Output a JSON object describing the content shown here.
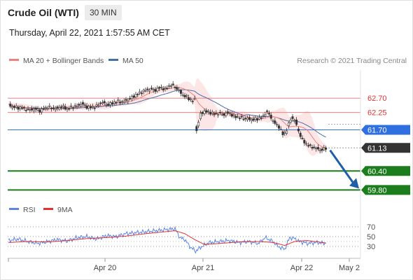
{
  "header": {
    "title": "Crude Oil (WTI)",
    "timeframe": "30 MIN",
    "datetime": "Thursday, April 22, 2021 1:57:55 AM CET"
  },
  "legend": {
    "ma20_label": "MA 20 + Bollinger Bands",
    "ma50_label": "MA 50",
    "copyright": "Research © 2021 Trading Central",
    "rsi_label": "RSI",
    "rsi_ma_label": "9MA"
  },
  "colors": {
    "ma20": "#f08080",
    "band_fill": "#fde0e0",
    "ma50": "#4a6ea8",
    "candle": "#333333",
    "resistance": "#f08080",
    "pivot": "#2f6fe0",
    "support": "#1b7d1b",
    "current": "#333333",
    "arrow": "#1f5fa8",
    "rsi": "#5b86e5",
    "rsi_ma": "#e53030"
  },
  "chart_data": [
    {
      "type": "candlestick",
      "title": "Crude Oil (WTI)",
      "x_ticks": [
        "Apr 20",
        "Apr 21",
        "Apr 22",
        "May 2"
      ],
      "y_range": [
        59.5,
        63.7
      ],
      "price_path": [
        [
          0,
          62.48
        ],
        [
          5,
          62.42
        ],
        [
          10,
          62.4
        ],
        [
          15,
          62.38
        ],
        [
          20,
          62.33
        ],
        [
          25,
          62.35
        ],
        [
          30,
          62.34
        ],
        [
          33,
          62.28
        ],
        [
          36,
          62.38
        ],
        [
          41,
          62.42
        ],
        [
          48,
          62.36
        ],
        [
          55,
          62.44
        ],
        [
          60,
          62.36
        ],
        [
          65,
          62.43
        ],
        [
          70,
          62.45
        ],
        [
          75,
          62.53
        ],
        [
          80,
          62.42
        ],
        [
          85,
          62.4
        ],
        [
          90,
          62.45
        ],
        [
          95,
          62.58
        ],
        [
          100,
          62.5
        ],
        [
          105,
          62.52
        ],
        [
          110,
          62.6
        ],
        [
          115,
          62.58
        ],
        [
          120,
          62.62
        ],
        [
          125,
          62.7
        ],
        [
          130,
          62.8
        ],
        [
          135,
          62.88
        ],
        [
          140,
          62.95
        ],
        [
          145,
          62.98
        ],
        [
          150,
          62.95
        ],
        [
          155,
          63.04
        ],
        [
          160,
          62.98
        ],
        [
          165,
          63.12
        ],
        [
          169,
          63.08
        ],
        [
          172,
          63.0
        ],
        [
          178,
          62.8
        ],
        [
          183,
          62.72
        ],
        [
          188,
          62.6
        ],
        [
          190,
          62.66
        ],
        [
          191,
          61.85
        ],
        [
          192,
          61.7
        ],
        [
          193,
          61.8
        ],
        [
          196,
          62.2
        ],
        [
          200,
          62.28
        ],
        [
          205,
          62.26
        ],
        [
          210,
          62.2
        ],
        [
          215,
          62.22
        ],
        [
          220,
          62.18
        ],
        [
          225,
          62.25
        ],
        [
          230,
          62.12
        ],
        [
          235,
          62.1
        ],
        [
          240,
          62.06
        ],
        [
          245,
          62.04
        ],
        [
          250,
          62.02
        ],
        [
          255,
          62.06
        ],
        [
          260,
          62.12
        ],
        [
          263,
          62.28
        ],
        [
          265,
          62.24
        ],
        [
          268,
          62.08
        ],
        [
          272,
          61.9
        ],
        [
          276,
          61.8
        ],
        [
          280,
          61.56
        ],
        [
          283,
          61.62
        ],
        [
          286,
          61.88
        ],
        [
          289,
          62.1
        ],
        [
          293,
          61.96
        ],
        [
          296,
          61.66
        ],
        [
          300,
          61.38
        ],
        [
          305,
          61.22
        ],
        [
          310,
          61.16
        ],
        [
          315,
          61.1
        ],
        [
          320,
          61.06
        ],
        [
          324,
          61.13
        ]
      ],
      "series": [
        {
          "name": "MA 20 + Bollinger Bands"
        },
        {
          "name": "MA 50"
        }
      ],
      "levels": [
        {
          "value": 62.7,
          "label": "62.70",
          "kind": "resistance"
        },
        {
          "value": 62.25,
          "label": "62.25",
          "kind": "resistance"
        },
        {
          "value": 61.7,
          "label": "61.70",
          "kind": "pivot"
        },
        {
          "value": 61.13,
          "label": "61.13",
          "kind": "current"
        },
        {
          "value": 60.4,
          "label": "60.40",
          "kind": "support"
        },
        {
          "value": 59.8,
          "label": "59.80",
          "kind": "support"
        }
      ],
      "arrow": {
        "from": 61.1,
        "to": 59.8,
        "direction": "down"
      },
      "grid": false,
      "legend_position": "top-left"
    },
    {
      "type": "line",
      "title": "RSI",
      "y_ticks": [
        70,
        50,
        30
      ],
      "y_range": [
        10,
        90
      ],
      "series": [
        {
          "name": "RSI",
          "values": [
            [
              0,
              42
            ],
            [
              10,
              45
            ],
            [
              20,
              40
            ],
            [
              30,
              36
            ],
            [
              40,
              40
            ],
            [
              50,
              44
            ],
            [
              60,
              41
            ],
            [
              70,
              48
            ],
            [
              80,
              50
            ],
            [
              90,
              45
            ],
            [
              100,
              52
            ],
            [
              110,
              50
            ],
            [
              120,
              56
            ],
            [
              130,
              58
            ],
            [
              140,
              60
            ],
            [
              150,
              62
            ],
            [
              160,
              64
            ],
            [
              170,
              66
            ],
            [
              175,
              48
            ],
            [
              180,
              44
            ],
            [
              185,
              30
            ],
            [
              191,
              20
            ],
            [
              196,
              28
            ],
            [
              205,
              38
            ],
            [
              215,
              40
            ],
            [
              225,
              42
            ],
            [
              235,
              38
            ],
            [
              245,
              40
            ],
            [
              255,
              36
            ],
            [
              262,
              48
            ],
            [
              270,
              40
            ],
            [
              275,
              30
            ],
            [
              282,
              24
            ],
            [
              287,
              48
            ],
            [
              292,
              46
            ],
            [
              297,
              40
            ],
            [
              305,
              36
            ],
            [
              315,
              38
            ],
            [
              324,
              36
            ]
          ]
        },
        {
          "name": "9MA",
          "values": [
            [
              0,
              38
            ],
            [
              20,
              40
            ],
            [
              40,
              39
            ],
            [
              60,
              42
            ],
            [
              80,
              46
            ],
            [
              100,
              48
            ],
            [
              120,
              51
            ],
            [
              140,
              56
            ],
            [
              160,
              60
            ],
            [
              170,
              62
            ],
            [
              180,
              56
            ],
            [
              190,
              44
            ],
            [
              200,
              34
            ],
            [
              215,
              36
            ],
            [
              235,
              39
            ],
            [
              255,
              40
            ],
            [
              270,
              38
            ],
            [
              282,
              32
            ],
            [
              292,
              40
            ],
            [
              305,
              42
            ],
            [
              324,
              37
            ]
          ]
        }
      ],
      "grid": true,
      "legend_position": "top-left"
    }
  ]
}
